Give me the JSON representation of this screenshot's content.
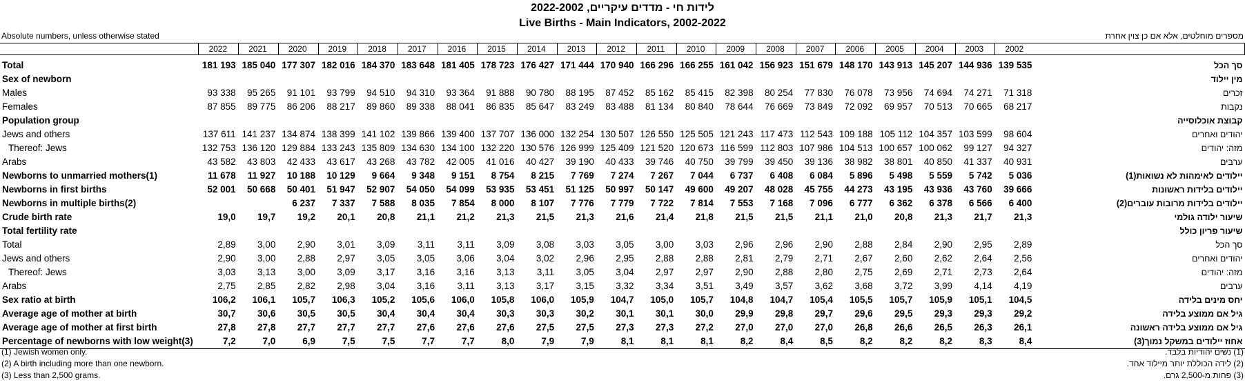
{
  "title_he": "לידות חי - מדדים עיקריים, 2022-2002",
  "title_en": "Live Births - Main Indicators, 2002-2022",
  "note_en": "Absolute numbers, unless otherwise stated",
  "note_he": "מספרים מוחלטים, אלא אם כן צוין אחרת",
  "years": [
    "2022",
    "2021",
    "2020",
    "2019",
    "2018",
    "2017",
    "2016",
    "2015",
    "2014",
    "2013",
    "2012",
    "2011",
    "2010",
    "2009",
    "2008",
    "2007",
    "2006",
    "2005",
    "2004",
    "2003",
    "2002"
  ],
  "rows": [
    {
      "en": "Total",
      "he": "סך הכל",
      "bold": true,
      "values": [
        "181 193",
        "185 040",
        "177 307",
        "182 016",
        "184 370",
        "183 648",
        "181 405",
        "178 723",
        "176 427",
        "171 444",
        "170 940",
        "166 296",
        "166 255",
        "161 042",
        "156 923",
        "151 679",
        "148 170",
        "143 913",
        "145 207",
        "144 936",
        "139 535"
      ]
    },
    {
      "en": "Sex of newborn",
      "he": "מין יילוד",
      "bold": true,
      "values": [
        "",
        "",
        "",
        "",
        "",
        "",
        "",
        "",
        "",
        "",
        "",
        "",
        "",
        "",
        "",
        "",
        "",
        "",
        "",
        "",
        ""
      ]
    },
    {
      "en": "Males",
      "he": "זכרים",
      "values": [
        "93 338",
        "95 265",
        "91 101",
        "93 799",
        "94 510",
        "94 310",
        "93 364",
        "91 888",
        "90 780",
        "88 195",
        "87 452",
        "85 162",
        "85 415",
        "82 398",
        "80 254",
        "77 830",
        "76 078",
        "73 956",
        "74 694",
        "74 271",
        "71 318"
      ]
    },
    {
      "en": "Females",
      "he": "נקבות",
      "values": [
        "87 855",
        "89 775",
        "86 206",
        "88 217",
        "89 860",
        "89 338",
        "88 041",
        "86 835",
        "85 647",
        "83 249",
        "83 488",
        "81 134",
        "80 840",
        "78 644",
        "76 669",
        "73 849",
        "72 092",
        "69 957",
        "70 513",
        "70 665",
        "68 217"
      ]
    },
    {
      "en": "Population group",
      "he": "קבוצת אוכלוסייה",
      "bold": true,
      "values": [
        "",
        "",
        "",
        "",
        "",
        "",
        "",
        "",
        "",
        "",
        "",
        "",
        "",
        "",
        "",
        "",
        "",
        "",
        "",
        "",
        ""
      ]
    },
    {
      "en": "Jews and others",
      "he": "יהודים ואחרים",
      "values": [
        "137 611",
        "141 237",
        "134 874",
        "138 399",
        "141 102",
        "139 866",
        "139 400",
        "137 707",
        "136 000",
        "132 254",
        "130 507",
        "126 550",
        "125 505",
        "121 243",
        "117 473",
        "112 543",
        "109 188",
        "105 112",
        "104 357",
        "103 599",
        "98 604"
      ]
    },
    {
      "en": "Thereof: Jews",
      "he": "מזה: יהודים",
      "indent": true,
      "values": [
        "132 753",
        "136 120",
        "129 884",
        "133 243",
        "135 809",
        "134 630",
        "134 100",
        "132 220",
        "130 576",
        "126 999",
        "125 409",
        "121 520",
        "120 673",
        "116 599",
        "112 803",
        "107 986",
        "104 513",
        "100 657",
        "100 062",
        "99 127",
        "94 327"
      ]
    },
    {
      "en": "Arabs",
      "he": "ערבים",
      "values": [
        "43 582",
        "43 803",
        "42 433",
        "43 617",
        "43 268",
        "43 782",
        "42 005",
        "41 016",
        "40 427",
        "39 190",
        "40 433",
        "39 746",
        "40 750",
        "39 799",
        "39 450",
        "39 136",
        "38 982",
        "38 801",
        "40 850",
        "41 337",
        "40 931"
      ]
    },
    {
      "en": "Newborns to unmarried mothers(1)",
      "he": "יילודים לאימהות לא נשואות(1)",
      "bold": true,
      "values": [
        "11 678",
        "11 927",
        "10 188",
        "10 129",
        "9 664",
        "9 348",
        "9 151",
        "8 754",
        "8 215",
        "7 769",
        "7 274",
        "7 267",
        "7 044",
        "6 737",
        "6 408",
        "6 084",
        "5 896",
        "5 498",
        "5 559",
        "5 742",
        "5 036"
      ]
    },
    {
      "en": "Newborns in first births",
      "he": "יילודים בלידות ראשונות",
      "bold": true,
      "values": [
        "52 001",
        "50 668",
        "50 401",
        "51 947",
        "52 907",
        "54 050",
        "54 099",
        "53 935",
        "53 451",
        "51 125",
        "50 997",
        "50 147",
        "49 600",
        "49 207",
        "48 028",
        "45 755",
        "44 273",
        "43 195",
        "43 936",
        "43 760",
        "39 666"
      ]
    },
    {
      "en": "Newborns in multiple births(2)",
      "he": "יילודים בלידות מרובות עוברים(2)",
      "bold": true,
      "values": [
        "",
        "",
        "6 237",
        "7 337",
        "7 588",
        "8 035",
        "7 854",
        "8 000",
        "8 107",
        "7 776",
        "7 779",
        "7 722",
        "7 814",
        "7 553",
        "7 168",
        "7 096",
        "6 777",
        "6 362",
        "6 378",
        "6 566",
        "6 400"
      ]
    },
    {
      "en": "Crude birth rate",
      "he": "שיעור ילודה גולמי",
      "bold": true,
      "values": [
        "19,0",
        "19,7",
        "19,2",
        "20,1",
        "20,8",
        "21,1",
        "21,2",
        "21,3",
        "21,5",
        "21,3",
        "21,6",
        "21,4",
        "21,8",
        "21,5",
        "21,5",
        "21,1",
        "21,0",
        "20,8",
        "21,3",
        "21,7",
        "21,3"
      ]
    },
    {
      "en": "Total fertility rate",
      "he": "שיעור פריון כולל",
      "bold": true,
      "values": [
        "",
        "",
        "",
        "",
        "",
        "",
        "",
        "",
        "",
        "",
        "",
        "",
        "",
        "",
        "",
        "",
        "",
        "",
        "",
        "",
        ""
      ]
    },
    {
      "en": "Total",
      "he": "סך הכל",
      "values": [
        "2,89",
        "3,00",
        "2,90",
        "3,01",
        "3,09",
        "3,11",
        "3,11",
        "3,09",
        "3,08",
        "3,03",
        "3,05",
        "3,00",
        "3,03",
        "2,96",
        "2,96",
        "2,90",
        "2,88",
        "2,84",
        "2,90",
        "2,95",
        "2,89"
      ]
    },
    {
      "en": "Jews and others",
      "he": "יהודים ואחרים",
      "values": [
        "2,90",
        "3,00",
        "2,88",
        "2,97",
        "3,05",
        "3,05",
        "3,06",
        "3,04",
        "3,02",
        "2,96",
        "2,95",
        "2,88",
        "2,88",
        "2,81",
        "2,79",
        "2,71",
        "2,67",
        "2,60",
        "2,62",
        "2,64",
        "2,56"
      ]
    },
    {
      "en": "Thereof: Jews",
      "he": "מזה: יהודים",
      "indent": true,
      "values": [
        "3,03",
        "3,13",
        "3,00",
        "3,09",
        "3,17",
        "3,16",
        "3,16",
        "3,13",
        "3,11",
        "3,05",
        "3,04",
        "2,97",
        "2,97",
        "2,90",
        "2,88",
        "2,80",
        "2,75",
        "2,69",
        "2,71",
        "2,73",
        "2,64"
      ]
    },
    {
      "en": "Arabs",
      "he": "ערבים",
      "values": [
        "2,75",
        "2,85",
        "2,82",
        "2,98",
        "3,04",
        "3,16",
        "3,11",
        "3,13",
        "3,17",
        "3,15",
        "3,32",
        "3,34",
        "3,51",
        "3,49",
        "3,57",
        "3,62",
        "3,68",
        "3,72",
        "3,99",
        "4,14",
        "4,19"
      ]
    },
    {
      "en": "Sex ratio at birth",
      "he": "יחס מינים בלידה",
      "bold": true,
      "values": [
        "106,2",
        "106,1",
        "105,7",
        "106,3",
        "105,2",
        "105,6",
        "106,0",
        "105,8",
        "106,0",
        "105,9",
        "104,7",
        "105,0",
        "105,7",
        "104,8",
        "104,7",
        "105,4",
        "105,5",
        "105,7",
        "105,9",
        "105,1",
        "104,5"
      ]
    },
    {
      "en": "Average age of mother at birth",
      "he": "גיל אם ממוצע בלידה",
      "bold": true,
      "values": [
        "30,7",
        "30,6",
        "30,5",
        "30,5",
        "30,4",
        "30,4",
        "30,4",
        "30,3",
        "30,3",
        "30,2",
        "30,1",
        "30,1",
        "30,0",
        "29,9",
        "29,8",
        "29,7",
        "29,6",
        "29,5",
        "29,3",
        "29,3",
        "29,2"
      ]
    },
    {
      "en": "Average age of mother at first birth",
      "he": "גיל אם ממוצע בלידה ראשונה",
      "bold": true,
      "values": [
        "27,8",
        "27,8",
        "27,7",
        "27,7",
        "27,7",
        "27,6",
        "27,6",
        "27,6",
        "27,5",
        "27,5",
        "27,3",
        "27,3",
        "27,2",
        "27,0",
        "27,0",
        "27,0",
        "26,8",
        "26,6",
        "26,5",
        "26,3",
        "26,1"
      ]
    },
    {
      "en": "Percentage of newborns with low weight(3)",
      "he": "אחוז יילודים במשקל נמוך(3)",
      "bold": true,
      "values": [
        "7,2",
        "7,0",
        "6,9",
        "7,5",
        "7,5",
        "7,7",
        "7,7",
        "8,0",
        "7,9",
        "7,9",
        "8,1",
        "8,1",
        "8,1",
        "8,2",
        "8,4",
        "8,5",
        "8,2",
        "8,2",
        "8,2",
        "8,3",
        "8,4"
      ]
    }
  ],
  "footnotes": [
    {
      "en": "(1) Jewish women only.",
      "he": "(1) נשים יהודיות בלבד."
    },
    {
      "en": "(2) A birth including more than one newborn.",
      "he": "(2) לידה הכוללת יותר מיילוד אחד."
    },
    {
      "en": "(3) Less than 2,500 grams.",
      "he": "(3) פחות מ-2,500 גרם."
    }
  ]
}
